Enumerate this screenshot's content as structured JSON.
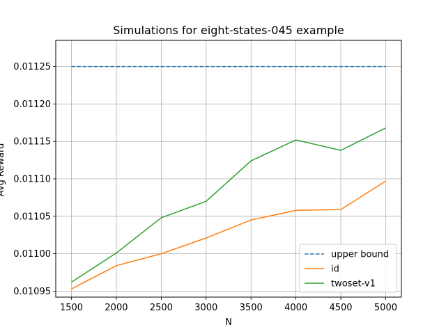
{
  "chart_data": {
    "type": "line",
    "title": "Simulations for eight-states-045 example",
    "xlabel": "N",
    "ylabel": "Avg Reward",
    "x": [
      1500,
      2000,
      2500,
      3000,
      3500,
      4000,
      4500,
      5000
    ],
    "x_ticks": [
      "1500",
      "2000",
      "2500",
      "3000",
      "3500",
      "4000",
      "4500",
      "5000"
    ],
    "y_ticks": [
      "0.01095",
      "0.01100",
      "0.01105",
      "0.01110",
      "0.01115",
      "0.01120",
      "0.01125"
    ],
    "xlim": [
      1325,
      5175
    ],
    "ylim": [
      0.010942,
      0.011285
    ],
    "grid": true,
    "legend_position": "lower-right",
    "series": [
      {
        "name": "upper bound",
        "color": "#1f77b4",
        "style": "dashed",
        "values": [
          0.01125,
          0.01125,
          0.01125,
          0.01125,
          0.01125,
          0.01125,
          0.01125,
          0.01125
        ]
      },
      {
        "name": "id",
        "color": "#ff7f0e",
        "style": "solid",
        "values": [
          0.010953,
          0.010984,
          0.011,
          0.011021,
          0.011045,
          0.011058,
          0.011059,
          0.011097
        ]
      },
      {
        "name": "twoset-v1",
        "color": "#2ca02c",
        "style": "solid",
        "values": [
          0.010962,
          0.011001,
          0.011048,
          0.01107,
          0.011124,
          0.011152,
          0.011138,
          0.011168
        ]
      }
    ]
  }
}
